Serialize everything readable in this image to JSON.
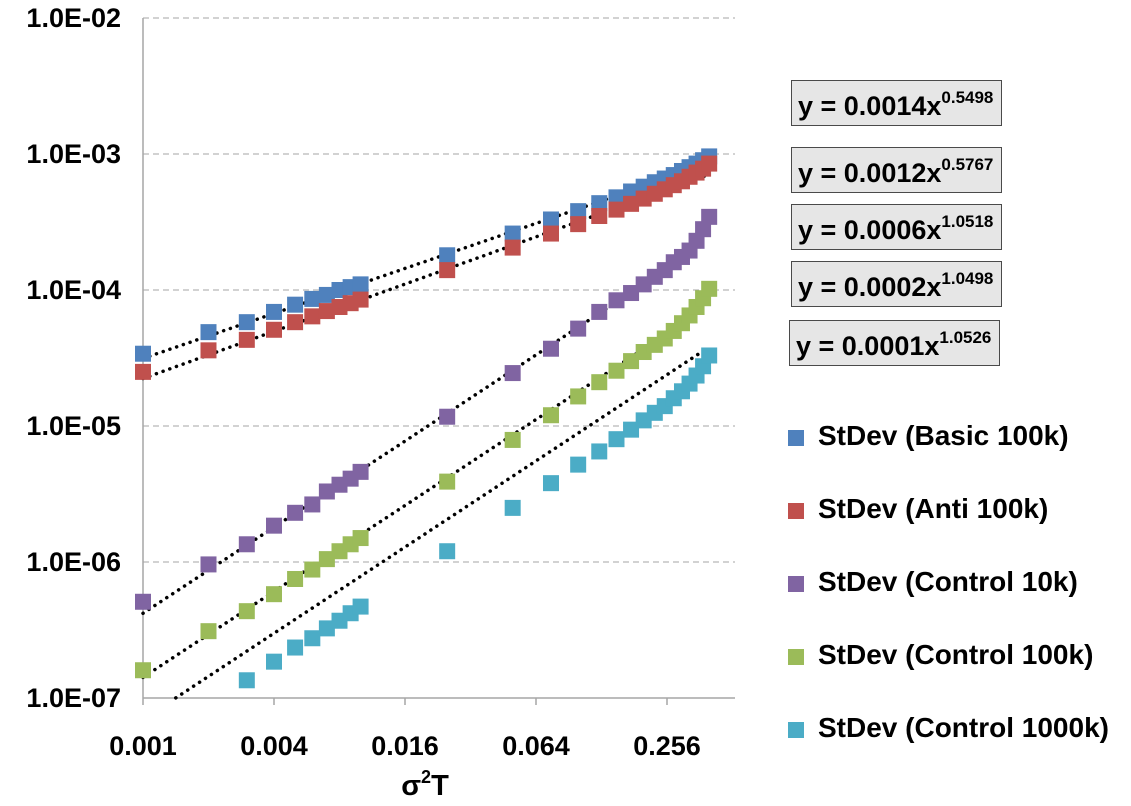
{
  "chart_data": {
    "type": "scatter",
    "x_scale": "log2",
    "y_scale": "log10",
    "xlim": [
      0.001,
      0.4
    ],
    "ylim": [
      1e-07,
      0.01
    ],
    "xticks": [
      "0.001",
      "0.004",
      "0.016",
      "0.064",
      "0.256"
    ],
    "yticks": [
      "1.0E-07",
      "1.0E-06",
      "1.0E-05",
      "1.0E-04",
      "1.0E-03",
      "1.0E-02"
    ],
    "xlabel_base": "σ",
    "xlabel_sup": "2",
    "xlabel_tail": "T",
    "grid_y": true,
    "legend_position": "right",
    "series": [
      {
        "name": "StDev (Basic 100k)",
        "color": "#4f81bd",
        "x": [
          0.001,
          0.002,
          0.003,
          0.004,
          0.005,
          0.006,
          0.007,
          0.008,
          0.009,
          0.01,
          0.025,
          0.05,
          0.075,
          0.1,
          0.125,
          0.15,
          0.175,
          0.2,
          0.225,
          0.25,
          0.275,
          0.3,
          0.325,
          0.35,
          0.375,
          0.4
        ],
        "y": [
          3.4e-05,
          4.9e-05,
          5.8e-05,
          6.9e-05,
          7.8e-05,
          8.6e-05,
          9.2e-05,
          0.0001,
          0.000105,
          0.00011,
          0.00018,
          0.00026,
          0.00033,
          0.00038,
          0.000435,
          0.00048,
          0.00053,
          0.000575,
          0.00062,
          0.00066,
          0.0007,
          0.00075,
          0.0008,
          0.00085,
          0.0009,
          0.00096
        ],
        "fit": {
          "a": 0.0014,
          "b": 0.5498,
          "label_base": "y = 0.0014x",
          "label_exp": "0.5498"
        }
      },
      {
        "name": "StDev (Anti 100k)",
        "color": "#c0504d",
        "x": [
          0.001,
          0.002,
          0.003,
          0.004,
          0.005,
          0.006,
          0.007,
          0.008,
          0.009,
          0.01,
          0.025,
          0.05,
          0.075,
          0.1,
          0.125,
          0.15,
          0.175,
          0.2,
          0.225,
          0.25,
          0.275,
          0.3,
          0.325,
          0.35,
          0.375,
          0.4
        ],
        "y": [
          2.5e-05,
          3.6e-05,
          4.3e-05,
          5.1e-05,
          5.8e-05,
          6.4e-05,
          7e-05,
          7.5e-05,
          8e-05,
          8.5e-05,
          0.00014,
          0.000205,
          0.00026,
          0.000305,
          0.00035,
          0.00039,
          0.00043,
          0.00047,
          0.00051,
          0.00055,
          0.00059,
          0.00063,
          0.00068,
          0.00073,
          0.00078,
          0.00085
        ],
        "fit": {
          "a": 0.0012,
          "b": 0.5767,
          "label_base": "y = 0.0012x",
          "label_exp": "0.5767"
        }
      },
      {
        "name": "StDev (Control 10k)",
        "color": "#8064a2",
        "x": [
          0.001,
          0.002,
          0.003,
          0.004,
          0.005,
          0.006,
          0.007,
          0.008,
          0.009,
          0.01,
          0.025,
          0.05,
          0.075,
          0.1,
          0.125,
          0.15,
          0.175,
          0.2,
          0.225,
          0.25,
          0.275,
          0.3,
          0.325,
          0.35,
          0.375,
          0.4
        ],
        "y": [
          5.1e-07,
          9.6e-07,
          1.35e-06,
          1.85e-06,
          2.3e-06,
          2.65e-06,
          3.3e-06,
          3.7e-06,
          4.1e-06,
          4.6e-06,
          1.17e-05,
          2.45e-05,
          3.7e-05,
          5.2e-05,
          6.9e-05,
          8.4e-05,
          9.5e-05,
          0.00011,
          0.000125,
          0.00014,
          0.00016,
          0.000175,
          0.000195,
          0.00023,
          0.00028,
          0.000345
        ],
        "fit": {
          "a": 0.0006,
          "b": 1.0518,
          "label_base": "y = 0.0006x",
          "label_exp": "1.0518"
        }
      },
      {
        "name": "StDev (Control 100k)",
        "color": "#9bbb59",
        "x": [
          0.001,
          0.002,
          0.003,
          0.004,
          0.005,
          0.006,
          0.007,
          0.008,
          0.009,
          0.01,
          0.025,
          0.05,
          0.075,
          0.1,
          0.125,
          0.15,
          0.175,
          0.2,
          0.225,
          0.25,
          0.275,
          0.3,
          0.325,
          0.35,
          0.375,
          0.4
        ],
        "y": [
          1.6e-07,
          3.1e-07,
          4.35e-07,
          5.8e-07,
          7.5e-07,
          8.8e-07,
          1.05e-06,
          1.2e-06,
          1.35e-06,
          1.5e-06,
          3.9e-06,
          7.9e-06,
          1.2e-05,
          1.65e-05,
          2.1e-05,
          2.55e-05,
          3e-05,
          3.5e-05,
          3.95e-05,
          4.4e-05,
          5e-05,
          5.7e-05,
          6.5e-05,
          7.5e-05,
          8.7e-05,
          0.000102
        ],
        "fit": {
          "a": 0.0002,
          "b": 1.0498,
          "label_base": "y = 0.0002x",
          "label_exp": "1.0498"
        }
      },
      {
        "name": "StDev (Control 1000k)",
        "color": "#4bacc6",
        "x": [
          0.003,
          0.004,
          0.005,
          0.006,
          0.007,
          0.008,
          0.009,
          0.01,
          0.025,
          0.05,
          0.075,
          0.1,
          0.125,
          0.15,
          0.175,
          0.2,
          0.225,
          0.25,
          0.275,
          0.3,
          0.325,
          0.35,
          0.375,
          0.4
        ],
        "y": [
          1.35e-07,
          1.85e-07,
          2.35e-07,
          2.75e-07,
          3.25e-07,
          3.7e-07,
          4.2e-07,
          4.7e-07,
          1.2e-06,
          2.5e-06,
          3.8e-06,
          5.2e-06,
          6.5e-06,
          8e-06,
          9.4e-06,
          1.1e-05,
          1.25e-05,
          1.4e-05,
          1.6e-05,
          1.8e-05,
          2.05e-05,
          2.35e-05,
          2.75e-05,
          3.3e-05
        ],
        "fit": {
          "a": 0.0001,
          "b": 1.0526,
          "label_base": "y = 0.0001x",
          "label_exp": "1.0526"
        }
      }
    ]
  }
}
